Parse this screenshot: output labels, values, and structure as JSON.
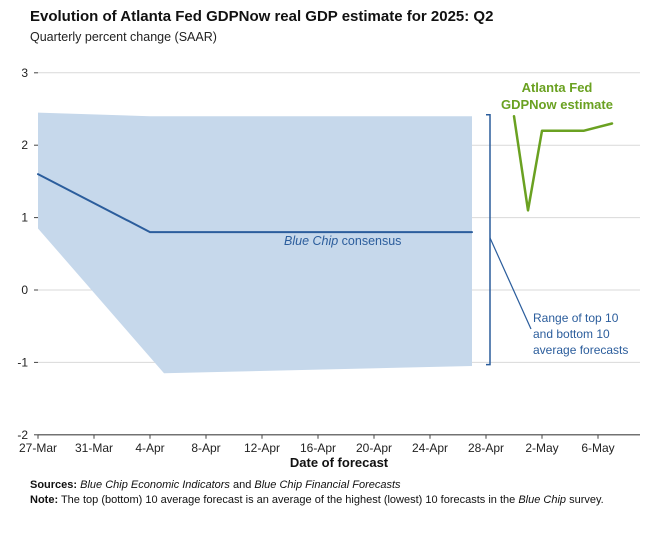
{
  "header": {
    "title": "Evolution of Atlanta Fed GDPNow real GDP estimate for 2025: Q2",
    "subtitle": "Quarterly percent change (SAAR)"
  },
  "chart_data": {
    "type": "line",
    "title": "Evolution of Atlanta Fed GDPNow real GDP estimate for 2025: Q2",
    "subtitle": "Quarterly percent change (SAAR)",
    "xlabel": "Date of forecast",
    "ylim": [
      -2,
      3
    ],
    "grid": "horizontal",
    "x_ticks": [
      "27-Mar",
      "31-Mar",
      "4-Apr",
      "8-Apr",
      "12-Apr",
      "16-Apr",
      "20-Apr",
      "24-Apr",
      "28-Apr",
      "2-May",
      "6-May"
    ],
    "y_ticks": [
      3,
      2,
      1,
      0,
      -1,
      -2
    ],
    "band": {
      "name": "Range of top 10 and bottom 10 average forecasts",
      "color": "#c6d8eb",
      "top": [
        [
          "27-Mar",
          2.45
        ],
        [
          "4-Apr",
          2.4
        ],
        [
          "27-Apr",
          2.4
        ]
      ],
      "bottom": [
        [
          "27-Mar",
          0.85
        ],
        [
          "5-Apr",
          -1.15
        ],
        [
          "27-Apr",
          -1.05
        ]
      ]
    },
    "series": [
      {
        "name": "Blue Chip consensus",
        "color": "#2b5d9c",
        "points": [
          [
            "27-Mar",
            1.6
          ],
          [
            "4-Apr",
            0.8
          ],
          [
            "27-Apr",
            0.8
          ]
        ]
      },
      {
        "name": "Atlanta Fed GDPNow estimate",
        "color": "#6aa121",
        "points": [
          [
            "30-Apr",
            2.4
          ],
          [
            "1-May",
            1.1
          ],
          [
            "2-May",
            2.2
          ],
          [
            "5-May",
            2.2
          ],
          [
            "7-May",
            2.3
          ]
        ]
      }
    ],
    "bracket": {
      "date": "28-Apr",
      "top": 2.42,
      "bottom": -1.03,
      "color": "#2b5d9c"
    }
  },
  "annotations": {
    "gdpnow_label": "Atlanta Fed\nGDPNow estimate",
    "consensus_label_italic": "Blue Chip",
    "consensus_label_rest": " consensus",
    "range_label": "Range of top 10\nand bottom 10\naverage forecasts"
  },
  "x_axis": {
    "label": "Date of forecast"
  },
  "footer": {
    "sources_label": "Sources:",
    "source_1": "Blue Chip Economic Indicators",
    "sources_joiner": " and ",
    "source_2": "Blue Chip Financial Forecasts",
    "note_label": "Note:",
    "note_text_1": " The top (bottom) 10 average forecast is an average of the highest (lowest) 10 forecasts in the ",
    "note_italic": "Blue Chip",
    "note_text_2": " survey."
  }
}
